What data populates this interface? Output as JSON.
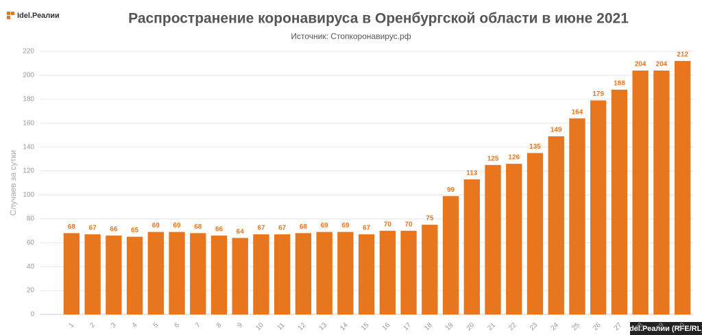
{
  "chart_data": {
    "type": "bar",
    "title": "Распространение коронавируса в Оренбургской области в июне 2021",
    "subtitle": "Источник: Стопкоронавирус.рф",
    "y_label": "Случаев за сутки",
    "logo": "Idel.Реалии",
    "credit": "Idel.Реалии (RFE/RL)",
    "categories": [
      "1",
      "2",
      "3",
      "4",
      "5",
      "6",
      "7",
      "8",
      "9",
      "10",
      "11",
      "12",
      "13",
      "14",
      "15",
      "16",
      "17",
      "18",
      "19",
      "20",
      "21",
      "22",
      "23",
      "24",
      "25",
      "26",
      "27",
      "28",
      "29",
      "30"
    ],
    "values": [
      68,
      67,
      66,
      65,
      69,
      69,
      68,
      66,
      64,
      67,
      67,
      68,
      69,
      69,
      67,
      70,
      70,
      75,
      99,
      113,
      125,
      126,
      135,
      149,
      164,
      179,
      188,
      204,
      204,
      212
    ],
    "color": "#e8761f",
    "ylim": [
      0,
      220
    ],
    "yticks": [
      0,
      20,
      40,
      60,
      80,
      100,
      120,
      140,
      160,
      180,
      200,
      220
    ],
    "grid": true
  }
}
